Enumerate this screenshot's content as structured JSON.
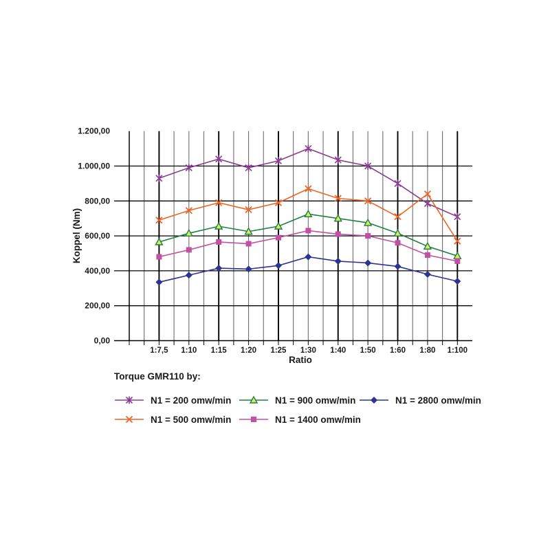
{
  "chart_data": {
    "type": "line",
    "title": "",
    "xlabel": "Ratio",
    "ylabel": "Koppel (Nm)",
    "ylim": [
      0,
      1200
    ],
    "ytick_step": 200,
    "ytick_labels": [
      "0,00",
      "200,00",
      "400,00",
      "600,00",
      "800,00",
      "1.000,00",
      "1.200,00"
    ],
    "categories": [
      "1:7,5",
      "1:10",
      "1:15",
      "1:20",
      "1:25",
      "1:30",
      "1:40",
      "1:50",
      "1:60",
      "1:80",
      "1:100"
    ],
    "grid": {
      "horizontal": "black lines every 200 Nm",
      "vertical": "gray minor lines at half-category steps, thick black lines at alternate categories",
      "minor_color": "#6E6E6E",
      "major_color": "#000000"
    },
    "legend_title": "Torque GMR110 by:",
    "legend_position": "bottom-left, 3 columns x 2 rows",
    "series": [
      {
        "name": "N1 = 200 omw/min",
        "marker": "asterisk",
        "color": "#8A3B94",
        "values": [
          930,
          990,
          1040,
          990,
          1030,
          1100,
          1035,
          1000,
          900,
          785,
          710
        ]
      },
      {
        "name": "N1 = 500 omw/min",
        "marker": "x",
        "color": "#F06422",
        "values": [
          690,
          745,
          790,
          750,
          790,
          870,
          815,
          800,
          710,
          840,
          570
        ]
      },
      {
        "name": "N1 = 900 omw/min",
        "marker": "triangle",
        "color": "#1E8040",
        "marker_fill": "#D9E868",
        "values": [
          565,
          615,
          655,
          625,
          655,
          725,
          700,
          675,
          615,
          540,
          485
        ]
      },
      {
        "name": "N1 = 1400 omw/min",
        "marker": "square",
        "color": "#C251A3",
        "values": [
          480,
          520,
          565,
          555,
          590,
          630,
          610,
          600,
          560,
          490,
          455
        ]
      },
      {
        "name": "N1 = 2800 omw/min",
        "marker": "diamond",
        "color": "#2C3390",
        "values": [
          335,
          375,
          415,
          410,
          430,
          480,
          455,
          445,
          425,
          380,
          340
        ]
      }
    ]
  }
}
